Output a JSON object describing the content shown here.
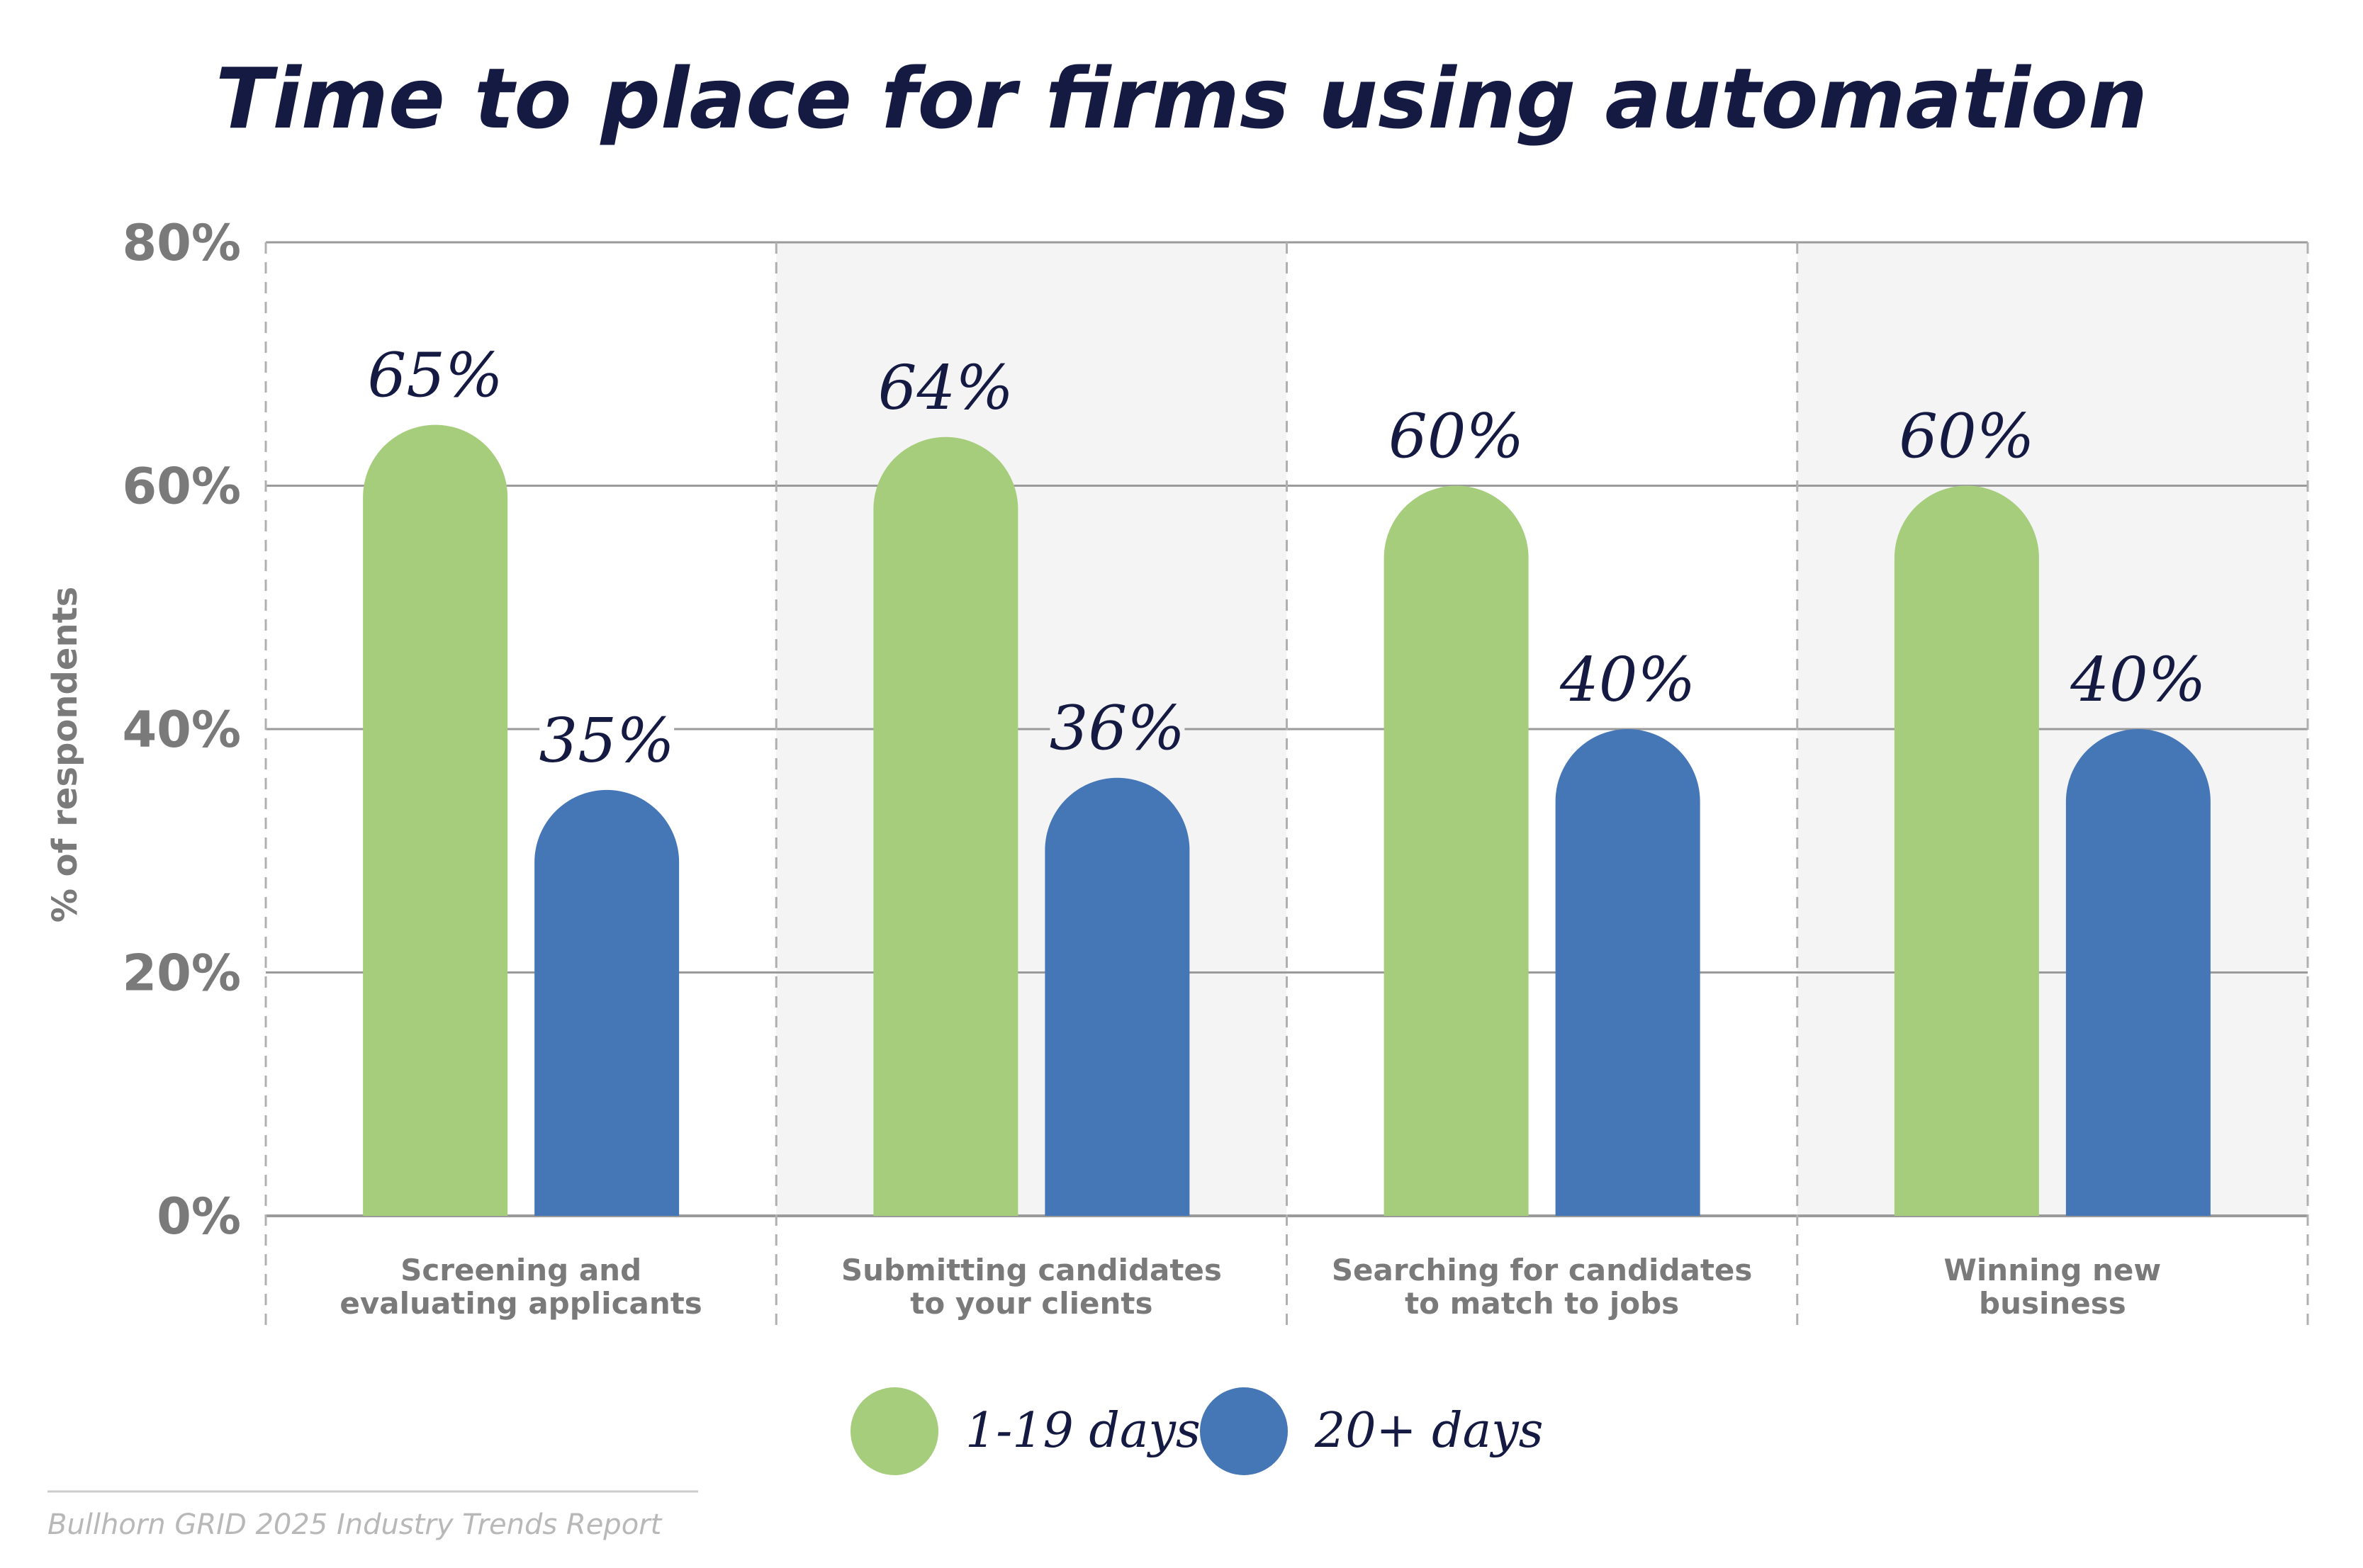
{
  "chart_data": {
    "type": "bar",
    "title": "Time to place for firms using automation",
    "ylabel": "% of respondents",
    "ylim": [
      0,
      80
    ],
    "yticks": [
      0,
      20,
      40,
      60,
      80
    ],
    "ytick_labels": [
      "0%",
      "20%",
      "40%",
      "60%",
      "80%"
    ],
    "categories": [
      [
        "Screening and",
        "evaluating applicants"
      ],
      [
        "Submitting candidates",
        "to your clients"
      ],
      [
        "Searching for candidates",
        "to match to jobs"
      ],
      [
        "Winning new",
        "business"
      ]
    ],
    "series": [
      {
        "name": "1-19 days",
        "color": "#a6cd7b",
        "values": [
          65,
          64,
          60,
          60
        ],
        "labels": [
          "65%",
          "64%",
          "60%",
          "60%"
        ]
      },
      {
        "name": "20+ days",
        "color": "#4577b7",
        "values": [
          35,
          36,
          40,
          40
        ],
        "labels": [
          "35%",
          "36%",
          "40%",
          "40%"
        ]
      }
    ],
    "legend_placement": "bottom-center",
    "grid": true
  },
  "source": "Bullhorn GRID 2025 Industry Trends Report",
  "colors": {
    "title": "#141a42",
    "axis_text": "#7a7a7a",
    "band": "#f4f4f4",
    "gridline": "#9a9a9a",
    "divider": "#b0b0b0"
  }
}
